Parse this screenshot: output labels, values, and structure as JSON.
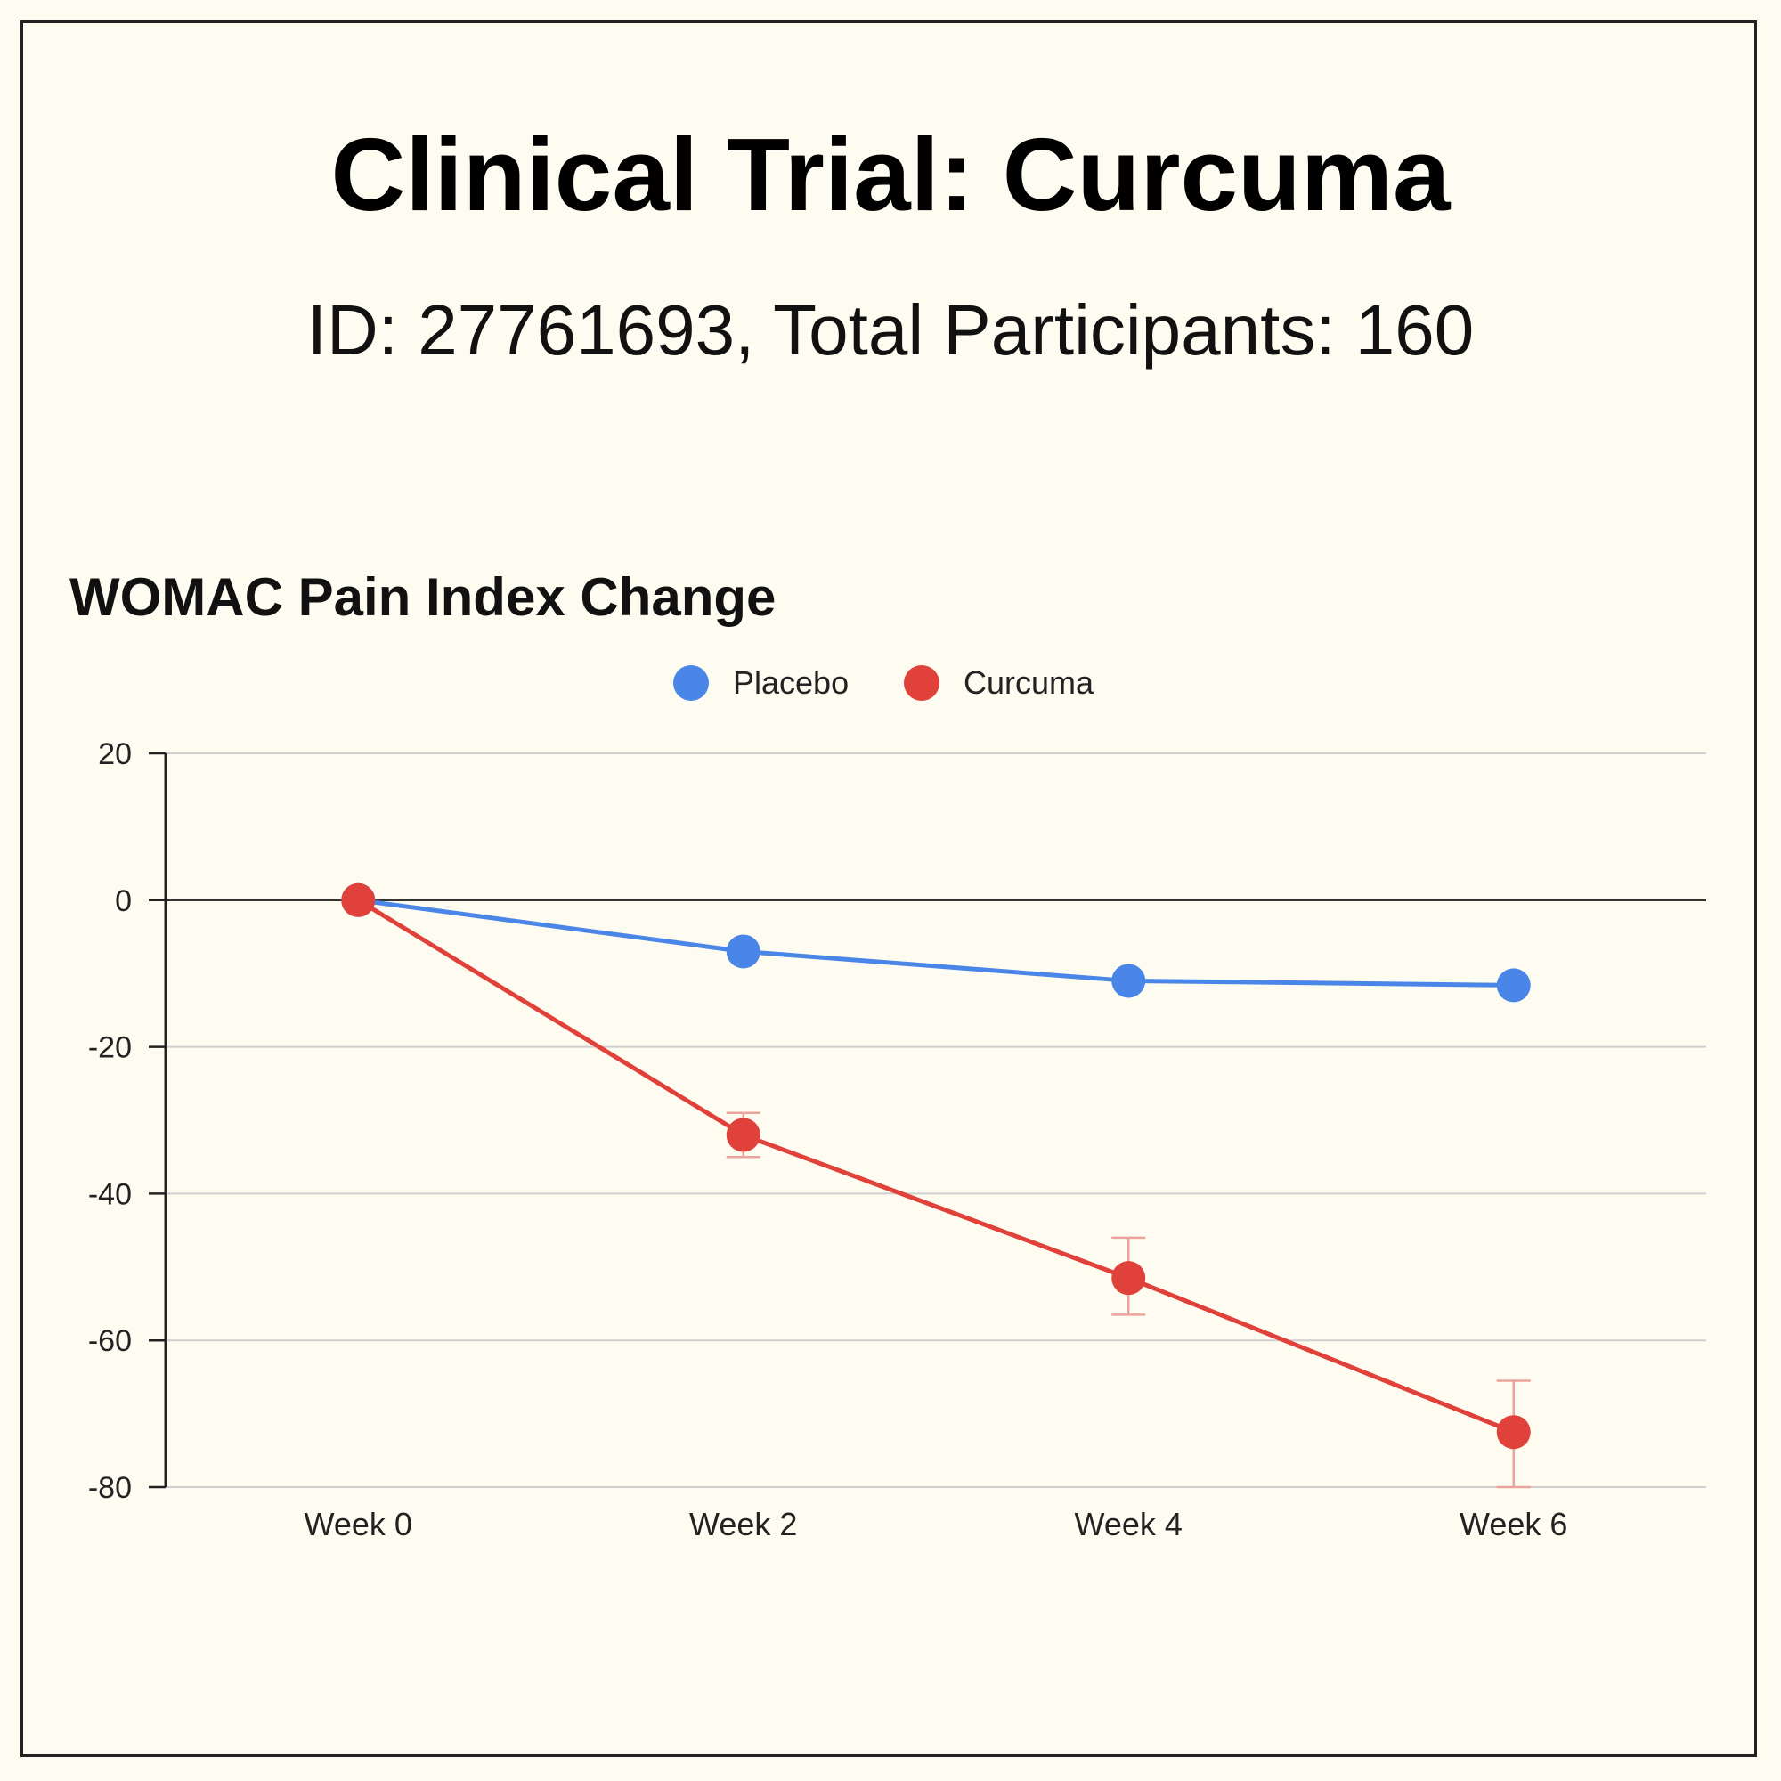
{
  "header": {
    "title": "Clinical Trial: Curcuma",
    "subtitle": "ID: 27761693, Total Participants: 160"
  },
  "chart_data": {
    "type": "line",
    "title": "WOMAC Pain Index Change",
    "xlabel": "",
    "ylabel": "",
    "categories": [
      "Week 0",
      "Week 2",
      "Week 4",
      "Week 6"
    ],
    "ylim": [
      -80,
      20
    ],
    "yticks": [
      20,
      0,
      -20,
      -40,
      -60,
      -80
    ],
    "grid": true,
    "legend": "top-center",
    "series": [
      {
        "name": "Placebo",
        "color": "#4a86e8",
        "values": [
          0,
          -7,
          -11,
          -11.6
        ]
      },
      {
        "name": "Curcuma",
        "color": "#e0413a",
        "values": [
          0,
          -32,
          -51.5,
          -72.5
        ],
        "error_low": [
          null,
          -35,
          -56.5,
          -80
        ],
        "error_high": [
          null,
          -29,
          -46,
          -65.5
        ]
      }
    ]
  }
}
